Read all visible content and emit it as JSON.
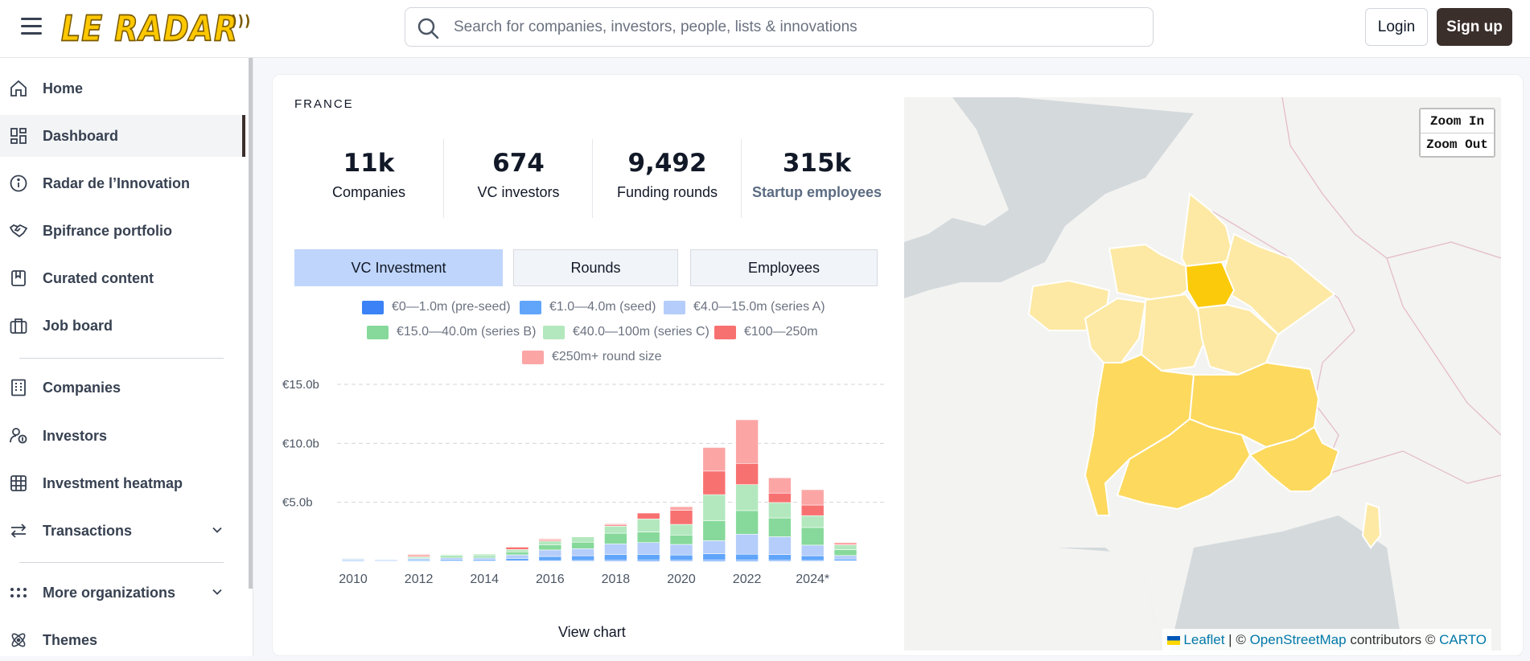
{
  "header": {
    "logo_text": "LE RADAR",
    "search_placeholder": "Search for companies, investors, people, lists & innovations",
    "login_label": "Login",
    "signup_label": "Sign up"
  },
  "sidebar": {
    "items": [
      {
        "label": "Home",
        "icon": "home-icon"
      },
      {
        "label": "Dashboard",
        "icon": "dashboard-icon",
        "active": true
      },
      {
        "label": "Radar de l’Innovation",
        "icon": "info-icon"
      },
      {
        "label": "Bpifrance portfolio",
        "icon": "handshake-icon"
      },
      {
        "label": "Curated content",
        "icon": "bookmark-icon"
      },
      {
        "label": "Job board",
        "icon": "briefcase-icon"
      },
      {
        "label": "Companies",
        "icon": "building-icon"
      },
      {
        "label": "Investors",
        "icon": "investor-icon"
      },
      {
        "label": "Investment heatmap",
        "icon": "grid-icon"
      },
      {
        "label": "Transactions",
        "icon": "transfer-icon",
        "expandable": true
      },
      {
        "label": "More organizations",
        "icon": "dots-grid-icon",
        "expandable": true
      },
      {
        "label": "Themes",
        "icon": "atom-icon"
      }
    ]
  },
  "main": {
    "country": "FRANCE",
    "stats": [
      {
        "value": "11k",
        "label": "Companies"
      },
      {
        "value": "674",
        "label": "VC investors"
      },
      {
        "value": "9,492",
        "label": "Funding rounds"
      },
      {
        "value": "315k",
        "label": "Startup employees"
      }
    ],
    "tabs": [
      {
        "label": "VC Investment",
        "active": true
      },
      {
        "label": "Rounds"
      },
      {
        "label": "Employees"
      }
    ],
    "view_chart_label": "View chart"
  },
  "chart_data": {
    "type": "bar",
    "stacked": true,
    "categories": [
      "2010",
      "2011",
      "2012",
      "2013",
      "2014",
      "2015",
      "2016",
      "2017",
      "2018",
      "2019",
      "2020",
      "2021",
      "2022",
      "2023",
      "2024*",
      "2025"
    ],
    "x_tick_labels": [
      "2010",
      "2012",
      "2014",
      "2016",
      "2018",
      "2020",
      "2022",
      "2024*"
    ],
    "y_tick_labels": [
      "€15.0b",
      "€10.0b",
      "€5.0b"
    ],
    "ylim": [
      0,
      15
    ],
    "grid": true,
    "legend_position": "top",
    "series": [
      {
        "name": "€0—1.0m (pre-seed)",
        "color": "#3b82f6",
        "values": [
          0.02,
          0.02,
          0.02,
          0.03,
          0.03,
          0.05,
          0.06,
          0.07,
          0.08,
          0.09,
          0.08,
          0.1,
          0.1,
          0.08,
          0.07,
          0.04
        ]
      },
      {
        "name": "€1.0—4.0m (seed)",
        "color": "#60a5fa",
        "values": [
          0.08,
          0.06,
          0.1,
          0.12,
          0.12,
          0.2,
          0.35,
          0.4,
          0.5,
          0.5,
          0.45,
          0.55,
          0.5,
          0.5,
          0.4,
          0.15
        ]
      },
      {
        "name": "€4.0—15.0m (series A)",
        "color": "#b4cdfa",
        "values": [
          0.1,
          0.08,
          0.12,
          0.15,
          0.15,
          0.3,
          0.55,
          0.6,
          0.9,
          1.0,
          0.9,
          1.1,
          1.7,
          1.5,
          0.9,
          0.3
        ]
      },
      {
        "name": "€15.0—40.0m (series B)",
        "color": "#86d99a",
        "values": [
          0.05,
          0.03,
          0.1,
          0.15,
          0.15,
          0.25,
          0.45,
          0.55,
          0.9,
          0.9,
          0.8,
          1.7,
          2.0,
          1.6,
          1.5,
          0.5
        ]
      },
      {
        "name": "€40.0—100m (series C)",
        "color": "#b3e8be",
        "values": [
          0.03,
          0.0,
          0.05,
          0.1,
          0.15,
          0.2,
          0.3,
          0.45,
          0.6,
          1.1,
          0.9,
          2.2,
          2.2,
          1.3,
          1.0,
          0.4
        ]
      },
      {
        "name": "€100—250m",
        "color": "#f87171",
        "values": [
          0.0,
          0.0,
          0.1,
          0.0,
          0.0,
          0.2,
          0.1,
          0.0,
          0.1,
          0.5,
          1.2,
          2.0,
          1.8,
          0.8,
          0.9,
          0.0
        ]
      },
      {
        "name": "€250m+ round size",
        "color": "#fca5a5",
        "values": [
          0.0,
          0.0,
          0.1,
          0.0,
          0.0,
          0.0,
          0.1,
          0.0,
          0.1,
          0.0,
          0.3,
          2.0,
          3.7,
          1.3,
          1.3,
          0.2
        ]
      }
    ]
  },
  "map": {
    "zoom_in_label": "Zoom In",
    "zoom_out_label": "Zoom Out",
    "attribution": {
      "leaflet": "Leaflet",
      "sep1": " | © ",
      "osm": "OpenStreetMap",
      "contrib": " contributors © ",
      "carto": "CARTO"
    },
    "colors": {
      "sea": "#d4d9dc",
      "land": "#f3f3f1",
      "border": "#e3b9c6",
      "region_light": "#fde9a4",
      "region_mid": "#fdd95e",
      "region_dark": "#fbca0b"
    }
  }
}
